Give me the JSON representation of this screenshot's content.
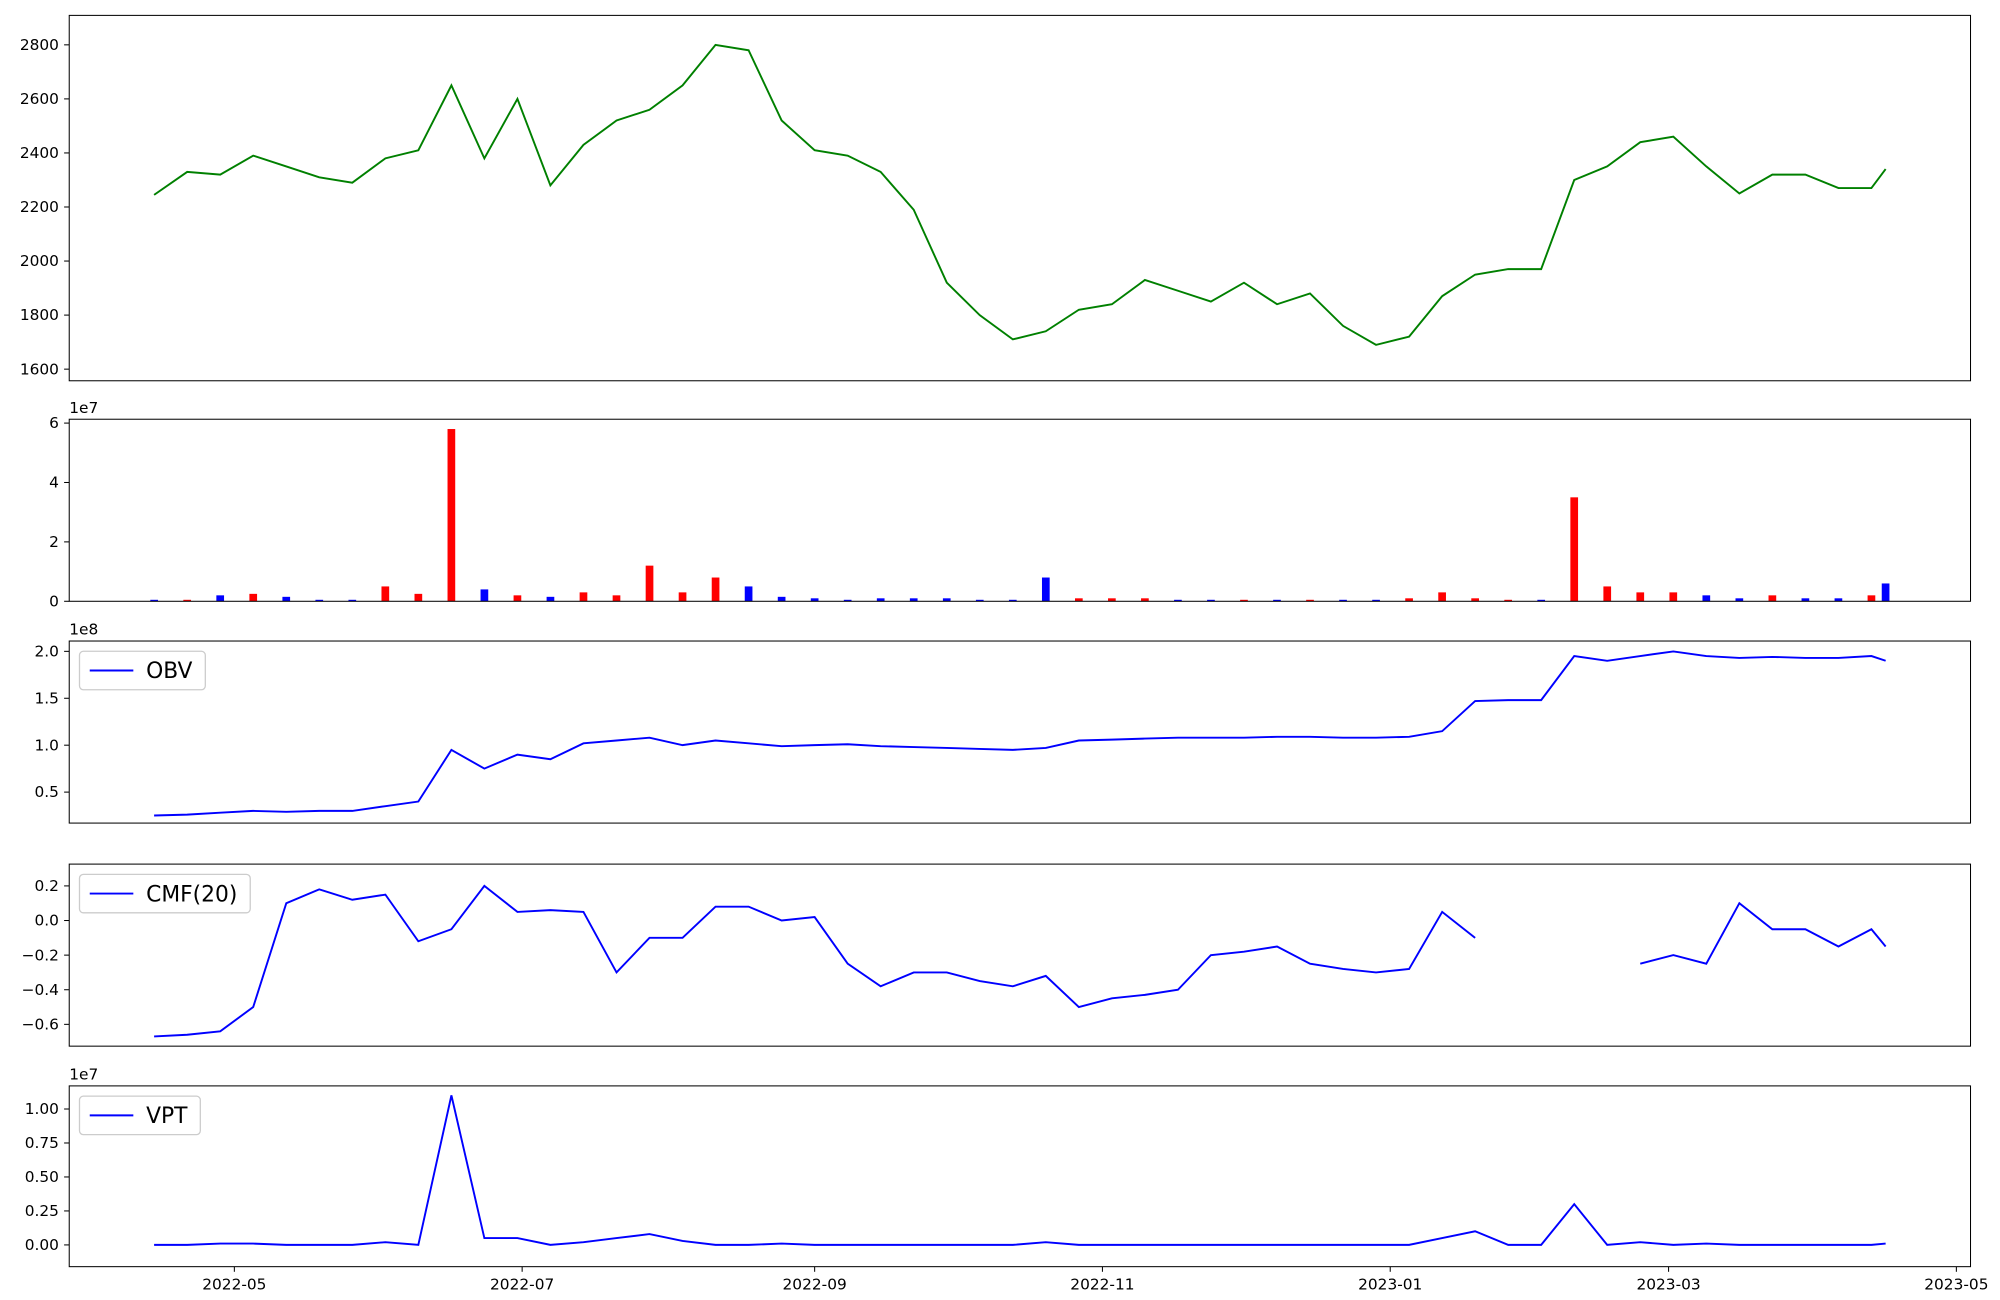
{
  "chart_data": [
    {
      "type": "line",
      "color": "green",
      "x": [
        19096,
        19103,
        19110,
        19117,
        19124,
        19131,
        19138,
        19145,
        19152,
        19159,
        19166,
        19173,
        19180,
        19187,
        19194,
        19201,
        19208,
        19215,
        19222,
        19229,
        19236,
        19243,
        19250,
        19257,
        19264,
        19271,
        19278,
        19285,
        19292,
        19299,
        19306,
        19313,
        19320,
        19327,
        19334,
        19341,
        19348,
        19355,
        19362,
        19369,
        19376,
        19383,
        19390,
        19397,
        19404,
        19411,
        19418,
        19425,
        19432,
        19439,
        19446,
        19453,
        19460,
        19463
      ],
      "values": [
        2245,
        2330,
        2320,
        2390,
        2350,
        2310,
        2290,
        2380,
        2410,
        2650,
        2380,
        2600,
        2280,
        2430,
        2520,
        2560,
        2650,
        2800,
        2780,
        2520,
        2410,
        2390,
        2330,
        2190,
        1920,
        1800,
        1710,
        1740,
        1820,
        1840,
        1930,
        1890,
        1850,
        1920,
        1840,
        1880,
        1760,
        1690,
        1720,
        1870,
        1950,
        1970,
        1970,
        2300,
        2350,
        2440,
        2460,
        2350,
        2250,
        2320,
        2320,
        2270,
        2270,
        2340
      ],
      "xlim": [
        19078,
        19481
      ],
      "ylim": [
        1557,
        2909
      ],
      "yticks": [
        1600,
        1800,
        2000,
        2200,
        2400,
        2600,
        2800
      ]
    },
    {
      "type": "bar",
      "offset_text": "1e7",
      "x": [
        19096,
        19103,
        19110,
        19117,
        19124,
        19131,
        19138,
        19145,
        19152,
        19159,
        19166,
        19173,
        19180,
        19187,
        19194,
        19201,
        19208,
        19215,
        19222,
        19229,
        19236,
        19243,
        19250,
        19257,
        19264,
        19271,
        19278,
        19285,
        19292,
        19299,
        19306,
        19313,
        19320,
        19327,
        19334,
        19341,
        19348,
        19355,
        19362,
        19369,
        19376,
        19383,
        19390,
        19397,
        19404,
        19411,
        19418,
        19425,
        19432,
        19439,
        19446,
        19453,
        19460,
        19463
      ],
      "values": [
        500000,
        500000,
        2000000,
        2500000,
        1500000,
        500000,
        500000,
        5000000,
        2500000,
        58000000,
        4000000,
        2000000,
        1500000,
        3000000,
        2000000,
        12000000,
        3000000,
        8000000,
        5000000,
        1500000,
        1000000,
        500000,
        1000000,
        1000000,
        1000000,
        500000,
        500000,
        8000000,
        1000000,
        1000000,
        1000000,
        500000,
        500000,
        500000,
        500000,
        500000,
        500000,
        500000,
        1000000,
        3000000,
        1000000,
        500000,
        500000,
        35000000,
        5000000,
        3000000,
        3000000,
        2000000,
        1000000,
        2000000,
        1000000,
        1000000,
        2000000,
        6000000
      ],
      "colors": [
        "blue",
        "red",
        "blue",
        "red",
        "blue",
        "blue",
        "blue",
        "red",
        "red",
        "red",
        "blue",
        "red",
        "blue",
        "red",
        "red",
        "red",
        "red",
        "red",
        "blue",
        "blue",
        "blue",
        "blue",
        "blue",
        "blue",
        "blue",
        "blue",
        "blue",
        "blue",
        "red",
        "red",
        "red",
        "blue",
        "blue",
        "red",
        "blue",
        "red",
        "blue",
        "blue",
        "red",
        "red",
        "red",
        "red",
        "blue",
        "red",
        "red",
        "red",
        "red",
        "blue",
        "blue",
        "red",
        "blue",
        "blue",
        "red",
        "blue"
      ],
      "xlim": [
        19078,
        19481
      ],
      "ylim": [
        0,
        61300000
      ],
      "yticks": [
        0,
        {
          "value": 20000000,
          "label": "2"
        },
        {
          "value": 40000000,
          "label": "4"
        },
        {
          "value": 60000000,
          "label": "6"
        }
      ]
    },
    {
      "type": "line",
      "offset_text": "1e8",
      "legend": "upper left",
      "x": [
        19096,
        19103,
        19110,
        19117,
        19124,
        19131,
        19138,
        19145,
        19152,
        19159,
        19166,
        19173,
        19180,
        19187,
        19194,
        19201,
        19208,
        19215,
        19222,
        19229,
        19236,
        19243,
        19250,
        19257,
        19264,
        19271,
        19278,
        19285,
        19292,
        19299,
        19306,
        19313,
        19320,
        19327,
        19334,
        19341,
        19348,
        19355,
        19362,
        19369,
        19376,
        19383,
        19390,
        19397,
        19404,
        19411,
        19418,
        19425,
        19432,
        19439,
        19446,
        19453,
        19460,
        19463
      ],
      "series": [
        {
          "name": "OBV",
          "color": "blue",
          "values": [
            25000000,
            26000000,
            28000000,
            30000000,
            29000000,
            30000000,
            30000000,
            35000000,
            40000000,
            95000000,
            75000000,
            90000000,
            85000000,
            102000000,
            105000000,
            108000000,
            100000000,
            105000000,
            102000000,
            99000000,
            100000000,
            101000000,
            99000000,
            98000000,
            97000000,
            96000000,
            95000000,
            97000000,
            105000000,
            106000000,
            107000000,
            108000000,
            108000000,
            108000000,
            109000000,
            109000000,
            108000000,
            108000000,
            109000000,
            115000000,
            147000000,
            148000000,
            148000000,
            195000000,
            190000000,
            195000000,
            200000000,
            195000000,
            193000000,
            194000000,
            193000000,
            193000000,
            195000000,
            190000000
          ]
        }
      ],
      "xlim": [
        19078,
        19481
      ],
      "ylim": [
        17000000,
        211000000
      ],
      "yticks": [
        {
          "value": 50000000,
          "label": "0.5"
        },
        {
          "value": 100000000,
          "label": "1.0"
        },
        {
          "value": 150000000,
          "label": "1.5"
        },
        {
          "value": 200000000,
          "label": "2.0"
        }
      ]
    },
    {
      "type": "line",
      "legend": "upper left",
      "x": [
        19096,
        19103,
        19110,
        19117,
        19124,
        19131,
        19138,
        19145,
        19152,
        19159,
        19166,
        19173,
        19180,
        19187,
        19194,
        19201,
        19208,
        19215,
        19222,
        19229,
        19236,
        19243,
        19250,
        19257,
        19264,
        19271,
        19278,
        19285,
        19292,
        19299,
        19306,
        19313,
        19320,
        19327,
        19334,
        19341,
        19348,
        19355,
        19362,
        19369,
        19376,
        19383,
        19390,
        19397,
        19404,
        19411,
        19418,
        19425,
        19432,
        19439,
        19446,
        19453,
        19460,
        19463
      ],
      "series": [
        {
          "name": "CMF(20)",
          "color": "blue",
          "values": [
            -0.67,
            -0.66,
            -0.64,
            -0.5,
            0.1,
            0.18,
            0.12,
            0.15,
            -0.12,
            -0.05,
            0.2,
            0.05,
            0.06,
            0.05,
            -0.3,
            -0.1,
            -0.1,
            0.08,
            0.08,
            0.0,
            0.02,
            -0.25,
            -0.38,
            -0.3,
            -0.3,
            -0.35,
            -0.38,
            -0.32,
            -0.5,
            -0.45,
            -0.43,
            -0.4,
            -0.2,
            -0.18,
            -0.15,
            -0.25,
            -0.28,
            -0.3,
            -0.28,
            0.05,
            -0.1,
            null,
            null,
            null,
            null,
            -0.25,
            -0.2,
            -0.25,
            0.1,
            -0.05,
            -0.05,
            -0.15,
            -0.05,
            -0.15
          ]
        }
      ],
      "xlim": [
        19078,
        19481
      ],
      "ylim": [
        -0.726,
        0.326
      ],
      "yticks": [
        {
          "value": -0.6,
          "label": "−0.6"
        },
        {
          "value": -0.4,
          "label": "−0.4"
        },
        {
          "value": -0.2,
          "label": "−0.2"
        },
        {
          "value": 0,
          "label": "0.0"
        },
        0.2
      ]
    },
    {
      "type": "line",
      "offset_text": "1e7",
      "legend": "upper left",
      "x": [
        19096,
        19103,
        19110,
        19117,
        19124,
        19131,
        19138,
        19145,
        19152,
        19159,
        19166,
        19173,
        19180,
        19187,
        19194,
        19201,
        19208,
        19215,
        19222,
        19229,
        19236,
        19243,
        19250,
        19257,
        19264,
        19271,
        19278,
        19285,
        19292,
        19299,
        19306,
        19313,
        19320,
        19327,
        19334,
        19341,
        19348,
        19355,
        19362,
        19369,
        19376,
        19383,
        19390,
        19397,
        19404,
        19411,
        19418,
        19425,
        19432,
        19439,
        19446,
        19453,
        19460,
        19463
      ],
      "series": [
        {
          "name": "VPT",
          "color": "blue",
          "values": [
            0,
            0,
            100000,
            100000,
            0,
            0,
            0,
            200000,
            0,
            11000000,
            500000,
            500000,
            0,
            200000,
            500000,
            800000,
            300000,
            0,
            0,
            100000,
            0,
            0,
            0,
            0,
            0,
            0,
            0,
            200000,
            0,
            0,
            0,
            0,
            0,
            0,
            0,
            0,
            0,
            0,
            0,
            500000,
            1000000,
            0,
            0,
            3000000,
            0,
            200000,
            0,
            100000,
            0,
            0,
            0,
            0,
            0,
            100000
          ]
        }
      ],
      "xlim": [
        19078,
        19481
      ],
      "ylim": [
        -1600000,
        11700000
      ],
      "yticks": [
        {
          "value": 0,
          "label": "0.00"
        },
        {
          "value": 2500000,
          "label": "0.25"
        },
        {
          "value": 5000000,
          "label": "0.50"
        },
        {
          "value": 7500000,
          "label": "0.75"
        },
        {
          "value": 10000000,
          "label": "1.00"
        }
      ],
      "xticks": [
        {
          "value": 19113,
          "label": "2022-05"
        },
        {
          "value": 19174,
          "label": "2022-07"
        },
        {
          "value": 19236,
          "label": "2022-09"
        },
        {
          "value": 19297,
          "label": "2022-11"
        },
        {
          "value": 19358,
          "label": "2023-01"
        },
        {
          "value": 19417,
          "label": "2023-03"
        },
        {
          "value": 19478,
          "label": "2023-05"
        }
      ]
    }
  ]
}
